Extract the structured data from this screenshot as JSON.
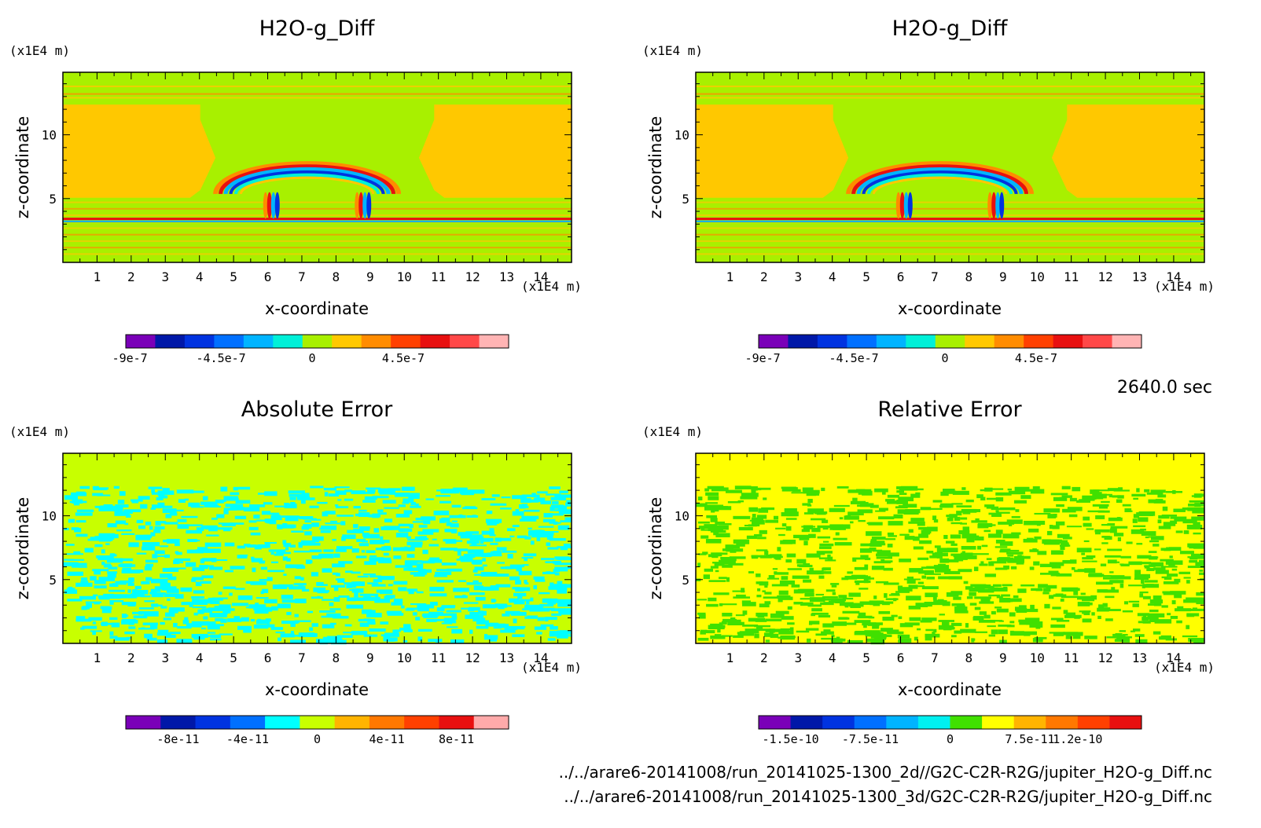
{
  "chart_data": [
    {
      "type": "heatmap",
      "title": "H2O-g_Diff",
      "xlabel": "x-coordinate",
      "ylabel": "z-coordinate",
      "x_unit": "(x1E4 m)",
      "y_unit": "(x1E4 m)",
      "xlim": [
        0,
        14.9
      ],
      "ylim": [
        0,
        14.9
      ],
      "xticks": [
        "1",
        "2",
        "3",
        "4",
        "5",
        "6",
        "7",
        "8",
        "9",
        "10",
        "11",
        "12",
        "13",
        "14"
      ],
      "yticks": [
        "5",
        "10"
      ],
      "pattern": "plume",
      "colorbar": {
        "colors": [
          "#7a00b8",
          "#0018a8",
          "#0033e0",
          "#0070ff",
          "#00b4ff",
          "#00f0d8",
          "#a8f000",
          "#ffc800",
          "#ff8c00",
          "#ff4000",
          "#e81010",
          "#ff4848",
          "#ffb4b4"
        ],
        "ticks": [
          "-9e-7",
          "-4.5e-7",
          "0",
          "4.5e-7"
        ],
        "tick_values": [
          -9e-07,
          -4.5e-07,
          0,
          4.5e-07
        ],
        "range": [
          -9.2e-07,
          9.7e-07
        ]
      }
    },
    {
      "type": "heatmap",
      "title": "H2O-g_Diff",
      "xlabel": "x-coordinate",
      "ylabel": "z-coordinate",
      "x_unit": "(x1E4 m)",
      "y_unit": "(x1E4 m)",
      "xlim": [
        0,
        14.9
      ],
      "ylim": [
        0,
        14.9
      ],
      "xticks": [
        "1",
        "2",
        "3",
        "4",
        "5",
        "6",
        "7",
        "8",
        "9",
        "10",
        "11",
        "12",
        "13",
        "14"
      ],
      "yticks": [
        "5",
        "10"
      ],
      "pattern": "plume",
      "colorbar": {
        "colors": [
          "#7a00b8",
          "#0018a8",
          "#0033e0",
          "#0070ff",
          "#00b4ff",
          "#00f0d8",
          "#a8f000",
          "#ffc800",
          "#ff8c00",
          "#ff4000",
          "#e81010",
          "#ff4848",
          "#ffb4b4"
        ],
        "ticks": [
          "-9e-7",
          "-4.5e-7",
          "0",
          "4.5e-7"
        ],
        "tick_values": [
          -9e-07,
          -4.5e-07,
          0,
          4.5e-07
        ],
        "range": [
          -9.2e-07,
          9.7e-07
        ]
      }
    },
    {
      "type": "heatmap",
      "title": "Absolute Error",
      "xlabel": "x-coordinate",
      "ylabel": "z-coordinate",
      "x_unit": "(x1E4 m)",
      "y_unit": "(x1E4 m)",
      "xlim": [
        0,
        14.9
      ],
      "ylim": [
        0,
        14.9
      ],
      "xticks": [
        "1",
        "2",
        "3",
        "4",
        "5",
        "6",
        "7",
        "8",
        "9",
        "10",
        "11",
        "12",
        "13",
        "14"
      ],
      "yticks": [
        "5",
        "10"
      ],
      "pattern": "noise",
      "noise_colors": [
        "#00ffff",
        "#c8ff00"
      ],
      "top_color": "#c8ff00",
      "colorbar": {
        "colors": [
          "#7a00b8",
          "#0018a8",
          "#0033e0",
          "#0070ff",
          "#00ffff",
          "#c8ff00",
          "#ffb400",
          "#ff7800",
          "#ff4000",
          "#e81010",
          "#ffaaaa"
        ],
        "ticks": [
          "-8e-11",
          "-4e-11",
          "0",
          "4e-11",
          "8e-11"
        ],
        "tick_values": [
          -8e-11,
          -4e-11,
          0,
          4e-11,
          8e-11
        ],
        "range": [
          -1.1e-10,
          1.1e-10
        ]
      }
    },
    {
      "type": "heatmap",
      "title": "Relative Error",
      "xlabel": "x-coordinate",
      "ylabel": "z-coordinate",
      "x_unit": "(x1E4 m)",
      "y_unit": "(x1E4 m)",
      "xlim": [
        0,
        14.9
      ],
      "ylim": [
        0,
        14.9
      ],
      "xticks": [
        "1",
        "2",
        "3",
        "4",
        "5",
        "6",
        "7",
        "8",
        "9",
        "10",
        "11",
        "12",
        "13",
        "14"
      ],
      "yticks": [
        "5",
        "10"
      ],
      "pattern": "noise",
      "noise_colors": [
        "#40e000",
        "#ffff00"
      ],
      "top_color": "#ffff00",
      "colorbar": {
        "colors": [
          "#7a00b8",
          "#0018a8",
          "#0033e0",
          "#0070ff",
          "#00b4ff",
          "#00f0f0",
          "#40e000",
          "#ffff00",
          "#ffb400",
          "#ff7800",
          "#ff4000",
          "#e81010"
        ],
        "ticks": [
          "-1.5e-10",
          "-7.5e-11",
          "0",
          "7.5e-11",
          "1.2e-10"
        ],
        "tick_values": [
          -1.5e-10,
          -7.5e-11,
          0,
          7.5e-11,
          1.2e-10
        ],
        "range": [
          -1.8e-10,
          1.8e-10
        ]
      }
    }
  ],
  "time_label": "2640.0 sec",
  "footer": {
    "line1": "../../arare6-20141008/run_20141025-1300_2d//G2C-C2R-R2G/jupiter_H2O-g_Diff.nc",
    "line2": "../../arare6-20141008/run_20141025-1300_3d/G2C-C2R-R2G/jupiter_H2O-g_Diff.nc"
  }
}
